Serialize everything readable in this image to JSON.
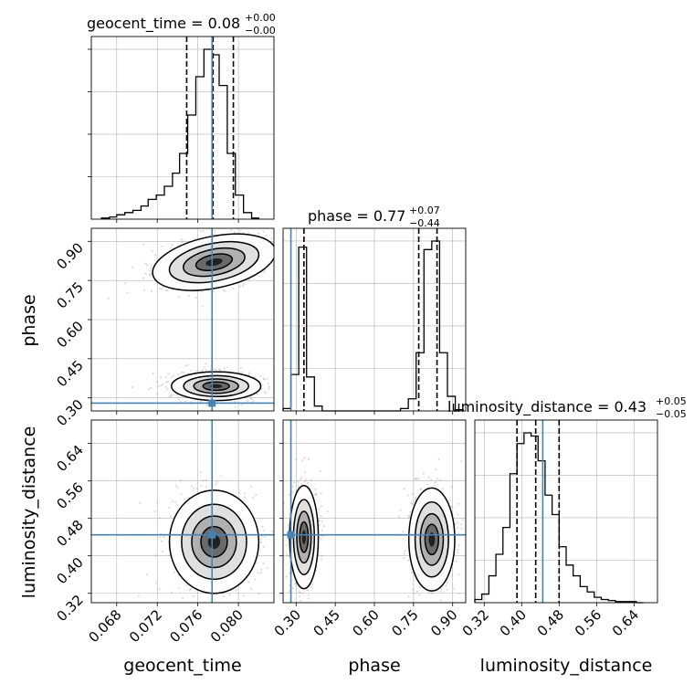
{
  "chart_data": {
    "type": "corner",
    "parameters": [
      {
        "key": "geocent_time",
        "label": "geocent_time",
        "range": [
          0.0655,
          0.0835
        ],
        "ticks": [
          0.068,
          0.072,
          0.076,
          0.08
        ],
        "tick_labels": [
          "0.068",
          "0.072",
          "0.076",
          "0.080"
        ],
        "truth": 0.0774,
        "quantiles": [
          0.0749,
          0.0775,
          0.0795
        ]
      },
      {
        "key": "phase",
        "label": "phase",
        "range": [
          0.25,
          0.95
        ],
        "ticks": [
          0.3,
          0.45,
          0.6,
          0.75,
          0.9
        ],
        "tick_labels": [
          "0.30",
          "0.45",
          "0.60",
          "0.75",
          "0.90"
        ],
        "truth": 0.28,
        "quantiles": [
          0.33,
          0.77,
          0.84
        ]
      },
      {
        "key": "luminosity_distance",
        "label": "luminosity_distance",
        "range": [
          0.3,
          0.69
        ],
        "ticks": [
          0.32,
          0.4,
          0.48,
          0.56,
          0.64
        ],
        "tick_labels": [
          "0.32",
          "0.40",
          "0.48",
          "0.56",
          "0.64"
        ],
        "truth": 0.445,
        "quantiles": [
          0.39,
          0.43,
          0.48
        ]
      }
    ],
    "row_tick_labels": {
      "phase": [
        "0.30",
        "0.45",
        "0.60",
        "0.75",
        "0.90"
      ],
      "luminosity_distance": [
        "0.32",
        "0.40",
        "0.48",
        "0.56",
        "0.64"
      ]
    },
    "titles": [
      {
        "name": "geocent_time",
        "value": "0.08",
        "plus": "+0.00",
        "minus": "−0.00"
      },
      {
        "name": "phase",
        "value": "0.77",
        "plus": "+0.07",
        "minus": "−0.44"
      },
      {
        "name": "luminosity_distance",
        "value": "0.43",
        "plus": "+0.05",
        "minus": "−0.05"
      }
    ],
    "histograms": {
      "geocent_time": {
        "bin_edges": [
          0.0665,
          0.0673,
          0.068,
          0.0688,
          0.0696,
          0.0704,
          0.0711,
          0.0719,
          0.0727,
          0.0735,
          0.0742,
          0.075,
          0.0758,
          0.0766,
          0.0774,
          0.0781,
          0.0789,
          0.0797,
          0.0805,
          0.0813,
          0.082
        ],
        "counts": [
          1,
          2,
          4,
          6,
          8,
          12,
          18,
          22,
          30,
          42,
          60,
          95,
          130,
          155,
          150,
          122,
          60,
          22,
          6,
          1
        ]
      },
      "phase": {
        "bin_edges": [
          0.25,
          0.28,
          0.31,
          0.34,
          0.37,
          0.4,
          0.43,
          0.46,
          0.49,
          0.52,
          0.55,
          0.58,
          0.61,
          0.64,
          0.67,
          0.7,
          0.73,
          0.76,
          0.79,
          0.82,
          0.85,
          0.88,
          0.91,
          0.94
        ],
        "counts": [
          2,
          30,
          135,
          28,
          4,
          0,
          0,
          0,
          0,
          0,
          0,
          0,
          0,
          0,
          0,
          2,
          10,
          48,
          133,
          140,
          48,
          12,
          1
        ]
      },
      "luminosity_distance": {
        "bin_edges": [
          0.3,
          0.315,
          0.33,
          0.345,
          0.36,
          0.375,
          0.39,
          0.405,
          0.42,
          0.435,
          0.45,
          0.465,
          0.48,
          0.495,
          0.51,
          0.525,
          0.54,
          0.555,
          0.57,
          0.585,
          0.6,
          0.615,
          0.63,
          0.645,
          0.66
        ],
        "counts": [
          3,
          8,
          25,
          45,
          70,
          120,
          148,
          158,
          155,
          132,
          100,
          82,
          52,
          35,
          25,
          15,
          10,
          5,
          3,
          2,
          1,
          1,
          1,
          0
        ]
      }
    },
    "joint_modes": [
      {
        "x": "geocent_time",
        "y": "phase",
        "modes": [
          {
            "cx": 0.0776,
            "cy": 0.82,
            "sx": 0.0028,
            "sy": 0.045,
            "tilt": 0.55
          },
          {
            "cx": 0.0778,
            "cy": 0.345,
            "sx": 0.002,
            "sy": 0.025,
            "tilt": 0.0
          }
        ]
      },
      {
        "x": "geocent_time",
        "y": "luminosity_distance",
        "modes": [
          {
            "cx": 0.0776,
            "cy": 0.43,
            "sx": 0.002,
            "sy": 0.05,
            "tilt": 0.0
          }
        ]
      },
      {
        "x": "phase",
        "y": "luminosity_distance",
        "modes": [
          {
            "cx": 0.33,
            "cy": 0.44,
            "sx": 0.025,
            "sy": 0.05,
            "tilt": 0.0
          },
          {
            "cx": 0.82,
            "cy": 0.435,
            "sx": 0.04,
            "sy": 0.05,
            "tilt": 0.0
          }
        ]
      }
    ],
    "colors": {
      "truth": "#4682b4",
      "hist": "#000000",
      "grid": "#b0b0b0",
      "scatter": "#9a9a9a"
    },
    "grid": true
  }
}
